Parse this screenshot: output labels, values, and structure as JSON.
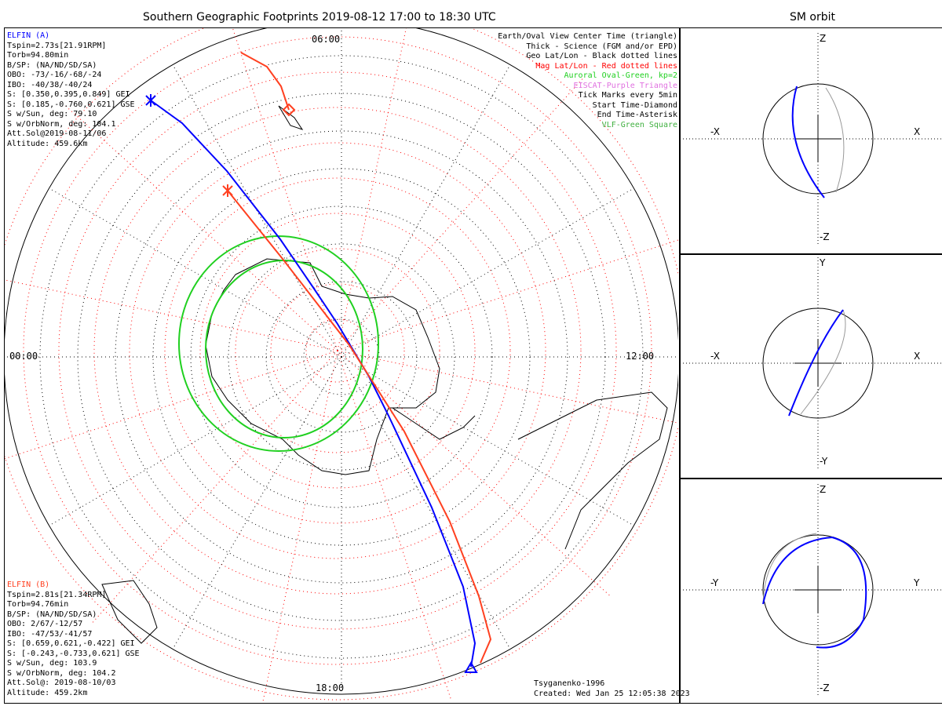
{
  "main": {
    "title": "Southern Geographic Footprints 2019-08-12 17:00 to 18:30 UTC",
    "hours": {
      "top": "06:00",
      "left": "00:00",
      "right": "12:00",
      "bottom": "18:00"
    },
    "model": "Tsyganenko-1996",
    "created": "Created: Wed Jan 25 12:05:38 2023"
  },
  "elfin_a": {
    "name": "ELFIN (A)",
    "lines": [
      "Tspin=2.73s[21.91RPM]",
      "Torb=94.80min",
      "B/SP: (NA/ND/SD/SA)",
      "OBO: -73/-16/-68/-24",
      "IBO: -40/38/-40/24",
      "S: [0.350,0.395,0.849] GEI",
      "S: [0.185,-0.760,0.621] GSE",
      "S w/Sun, deg: 79.10",
      "S w/OrbNorm, deg: 104.1",
      "Att.Sol@2019-08-11/06",
      "Altitude: 459.6km"
    ],
    "color": "#0000ff"
  },
  "elfin_b": {
    "name": "ELFIN (B)",
    "lines": [
      "Tspin=2.81s[21.34RPM]",
      "Torb=94.76min",
      "B/SP: (NA/ND/SD/SA)",
      "OBO: 2/67/-12/57",
      "IBO: -47/53/-41/57",
      "S: [0.659,0.621,-0.422] GEI",
      "S: [-0.243,-0.733,0.621] GSE",
      "S w/Sun, deg: 103.9",
      "S w/OrbNorm, deg: 104.2",
      "Att.Sol@: 2019-08-10/03",
      "Altitude: 459.2km"
    ],
    "color": "#ff4020"
  },
  "legend": [
    {
      "text": "Earth/Oval View Center Time (triangle)",
      "color": "#000000"
    },
    {
      "text": "Thick - Science (FGM and/or EPD)",
      "color": "#000000"
    },
    {
      "text": "Geo Lat/Lon - Black dotted lines",
      "color": "#000000"
    },
    {
      "text": "Mag Lat/Lon - Red dotted lines",
      "color": "#ff0000"
    },
    {
      "text": "Auroral Oval-Green, kp=2",
      "color": "#20d020"
    },
    {
      "text": "EISCAT-Purple Triangle",
      "color": "#e070e0"
    },
    {
      "text": "Tick Marks every 5min",
      "color": "#000000"
    },
    {
      "text": "Start Time-Diamond",
      "color": "#000000"
    },
    {
      "text": "End Time-Asterisk",
      "color": "#000000"
    },
    {
      "text": "VLF-Green Square",
      "color": "#40b040"
    }
  ],
  "orbit": {
    "title": "SM orbit",
    "panels": [
      {
        "top": "Z",
        "bottom": "-Z",
        "left": "-X",
        "right": "X"
      },
      {
        "top": "Y",
        "bottom": "-Y",
        "left": "-X",
        "right": "X"
      },
      {
        "top": "Z",
        "bottom": "-Z",
        "left": "-Y",
        "right": "Y"
      }
    ]
  }
}
